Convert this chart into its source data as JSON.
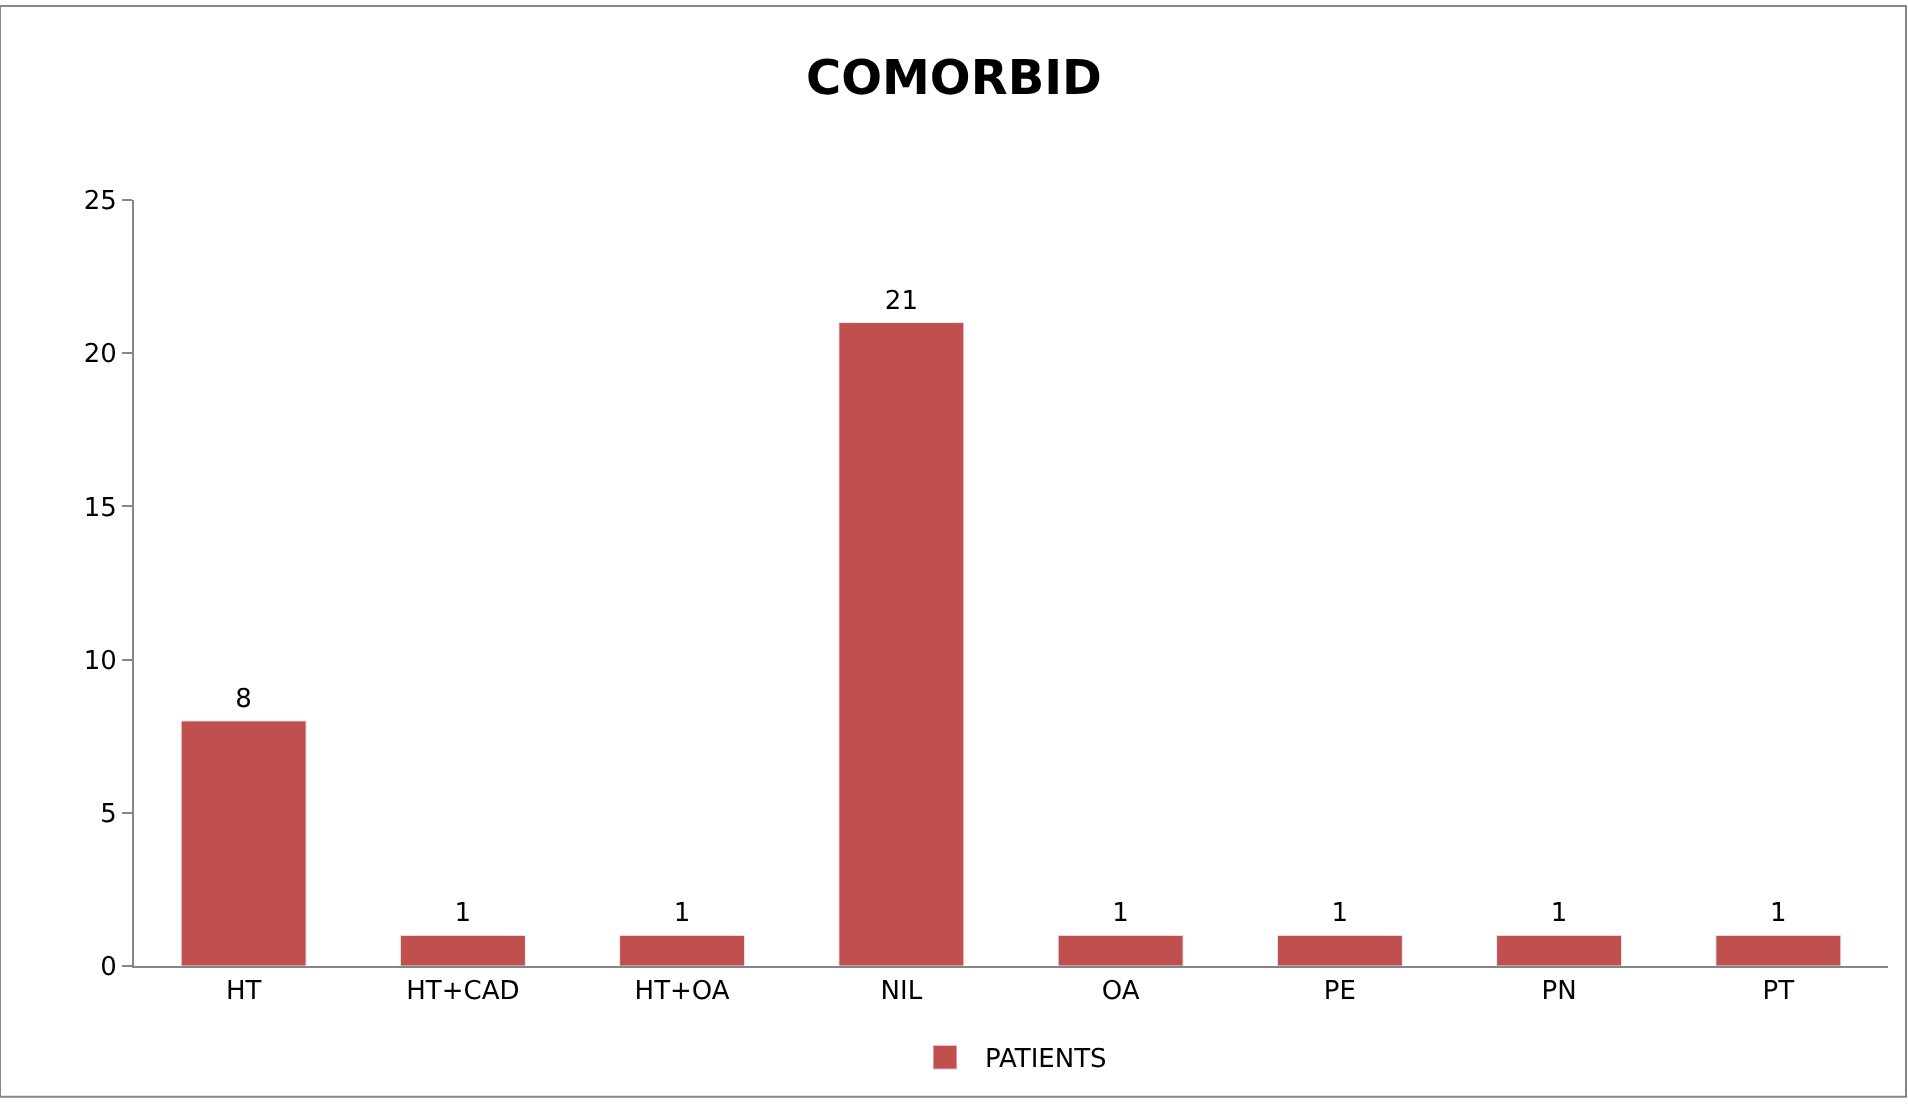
{
  "chart_data": {
    "type": "bar",
    "title": "COMORBID",
    "categories": [
      "HT",
      "HT+CAD",
      "HT+OA",
      "NIL",
      "OA",
      "PE",
      "PN",
      "PT"
    ],
    "series": [
      {
        "name": "PATIENTS",
        "color": "#c0504d",
        "values": [
          8,
          1,
          1,
          21,
          1,
          1,
          1,
          1
        ]
      }
    ],
    "ylim": [
      0,
      25
    ],
    "yticks": [
      0,
      5,
      10,
      15,
      20,
      25
    ],
    "legend": "bottom",
    "data_labels": true
  }
}
